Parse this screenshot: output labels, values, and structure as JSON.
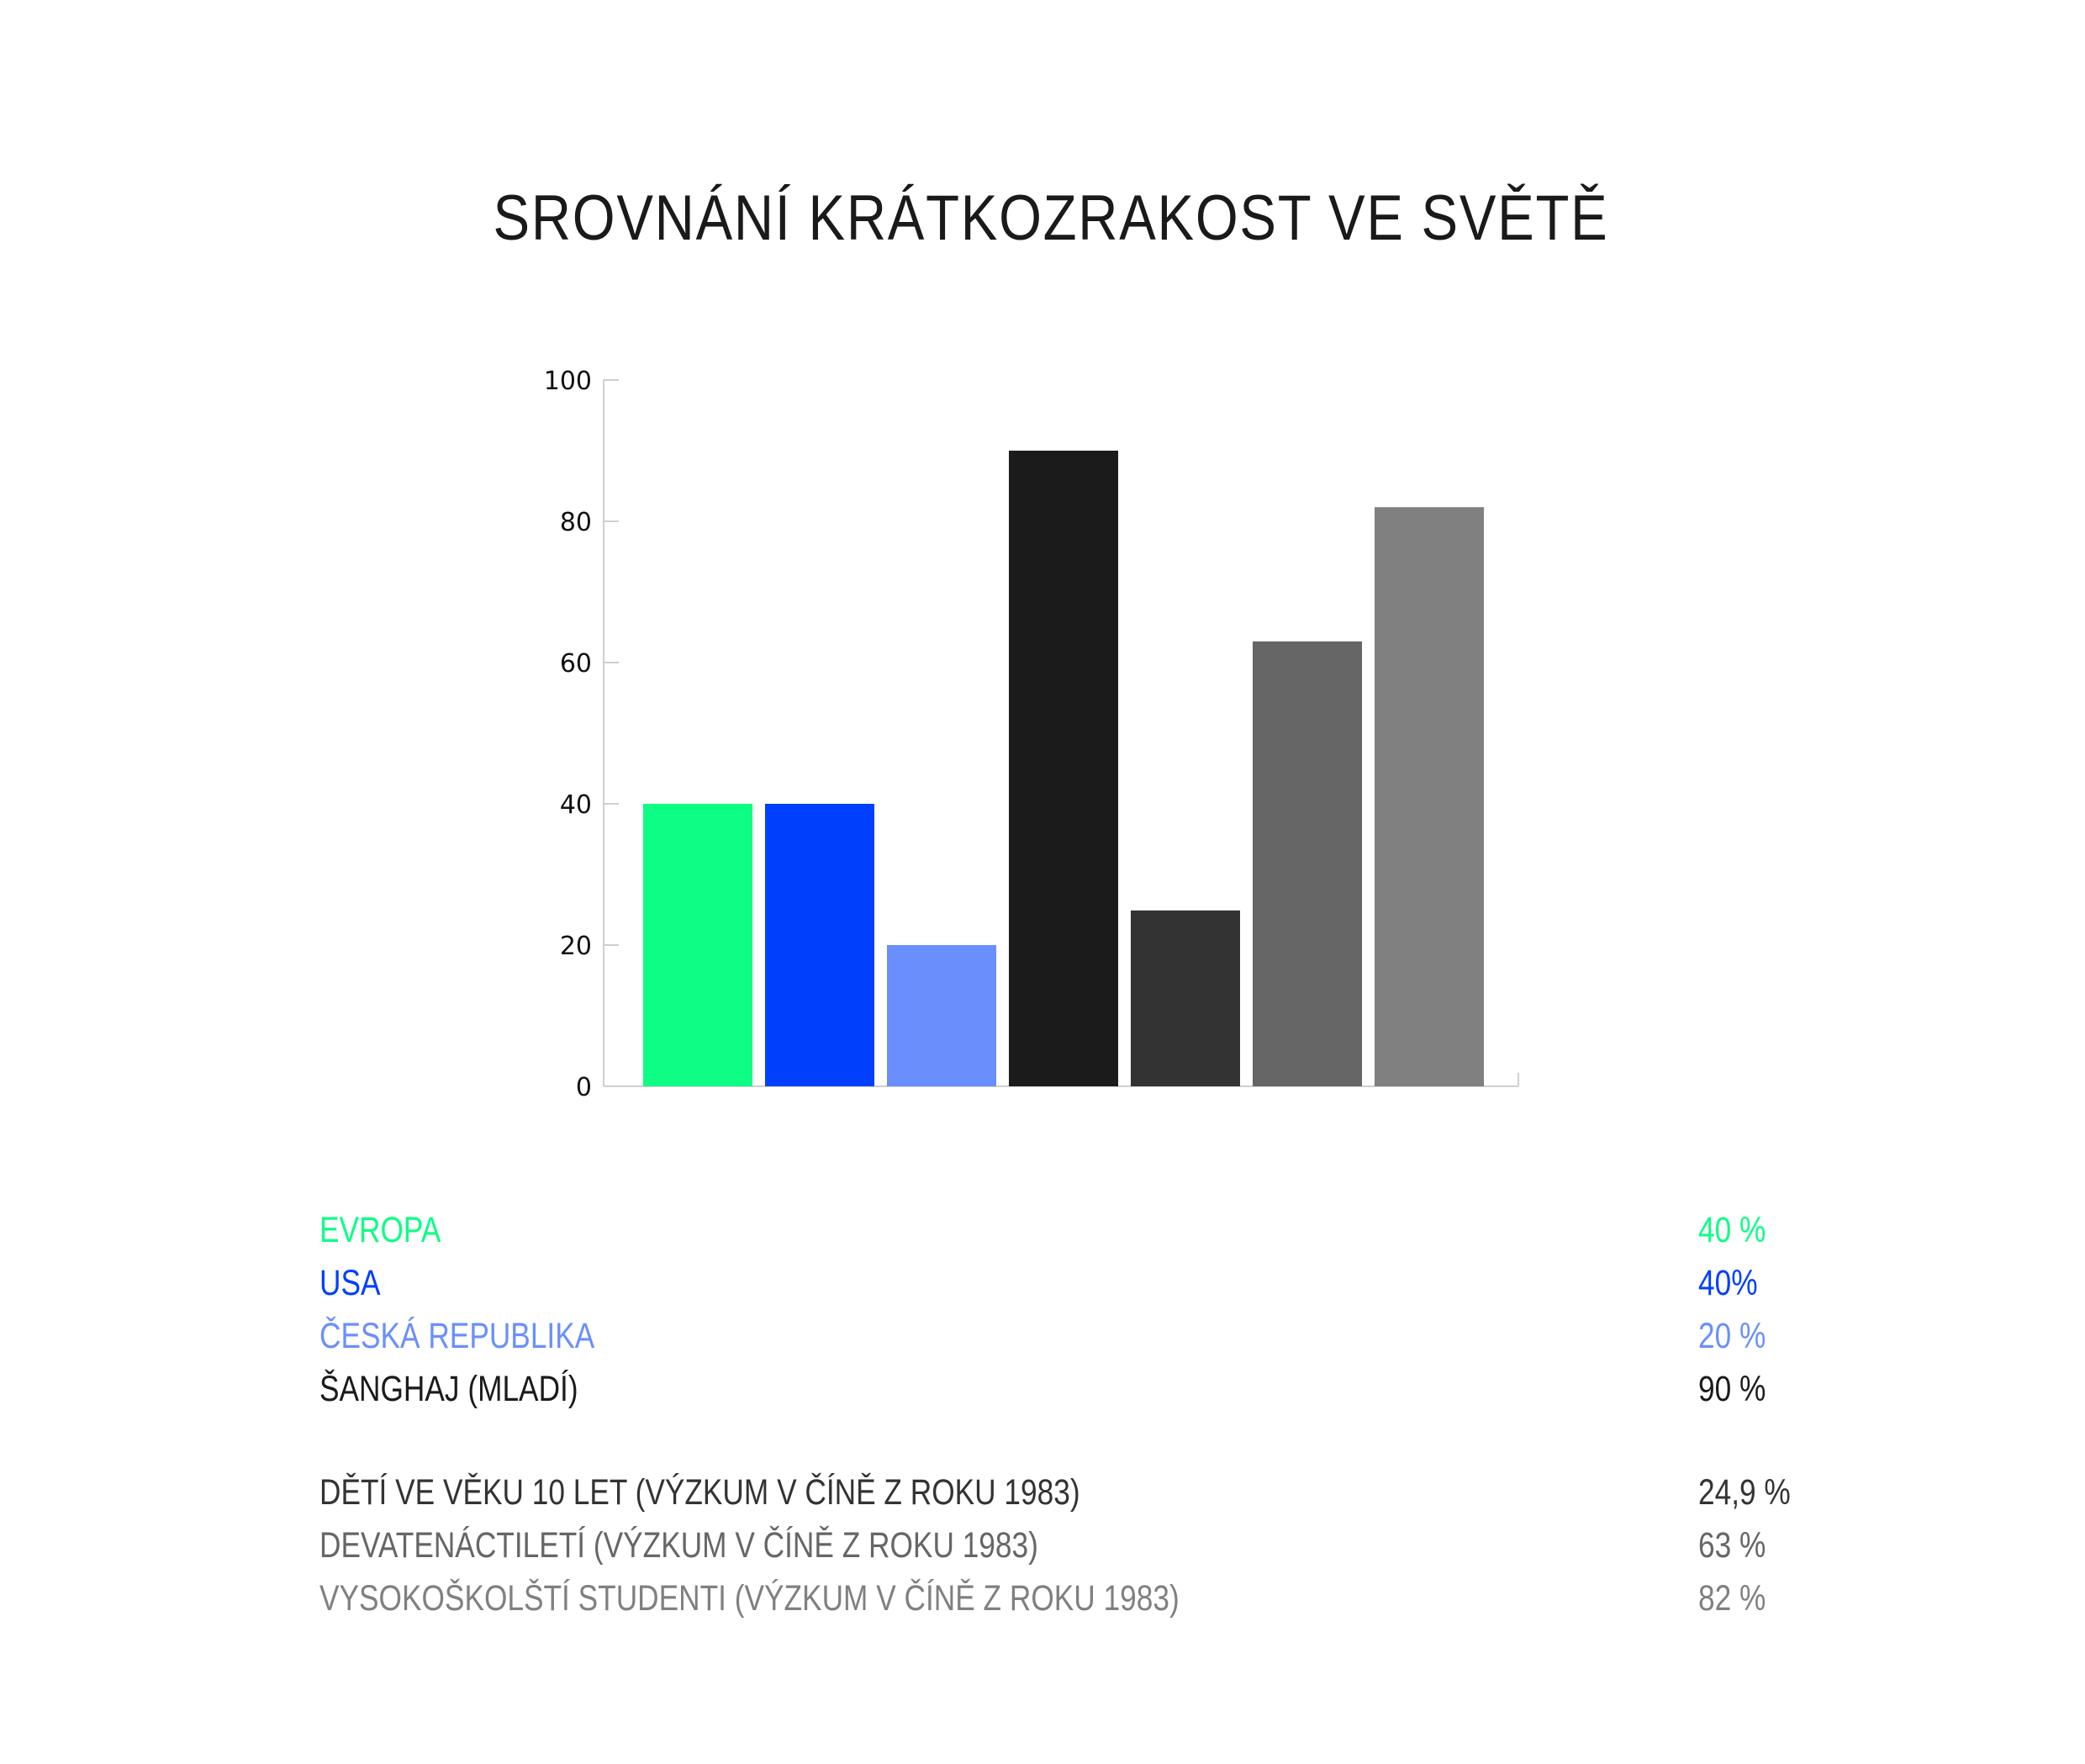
{
  "chart_data": {
    "type": "bar",
    "title": "SROVNÁNÍ KRÁTKOZRAKOST VE SVĚTĚ",
    "ylim": [
      0,
      100
    ],
    "yticks": [
      0,
      20,
      40,
      60,
      80,
      100
    ],
    "grid": false,
    "legend_position": "bottom",
    "series": [
      {
        "name": "EVROPA",
        "value": 40,
        "value_label": "40 %",
        "color": "#0efd85"
      },
      {
        "name": "USA",
        "value": 40,
        "value_label": "40%",
        "color": "#0040fd"
      },
      {
        "name": "ČESKÁ REPUBLIKA",
        "value": 20,
        "value_label": "20 %",
        "color": "#6a8ffd"
      },
      {
        "name": "ŠANGHAJ (MLADÍ)",
        "value": 90,
        "value_label": "90 %",
        "color": "#1b1b1b"
      },
      {
        "name": "DĚTÍ VE VĚKU 10 LET (VÝZKUM V ČÍNĚ Z ROKU 1983)",
        "value": 24.9,
        "value_label": "24,9 %",
        "color": "#333333"
      },
      {
        "name": "DEVATENÁCTILETÍ (VÝZKUM V ČÍNĚ Z ROKU 1983)",
        "value": 63,
        "value_label": "63 %",
        "color": "#666666"
      },
      {
        "name": "VYSOKOŠKOLŠTÍ STUDENTI (VÝZKUM V ČÍNĚ Z ROKU 1983)",
        "value": 82,
        "value_label": "82 %",
        "color": "#808080"
      }
    ]
  }
}
